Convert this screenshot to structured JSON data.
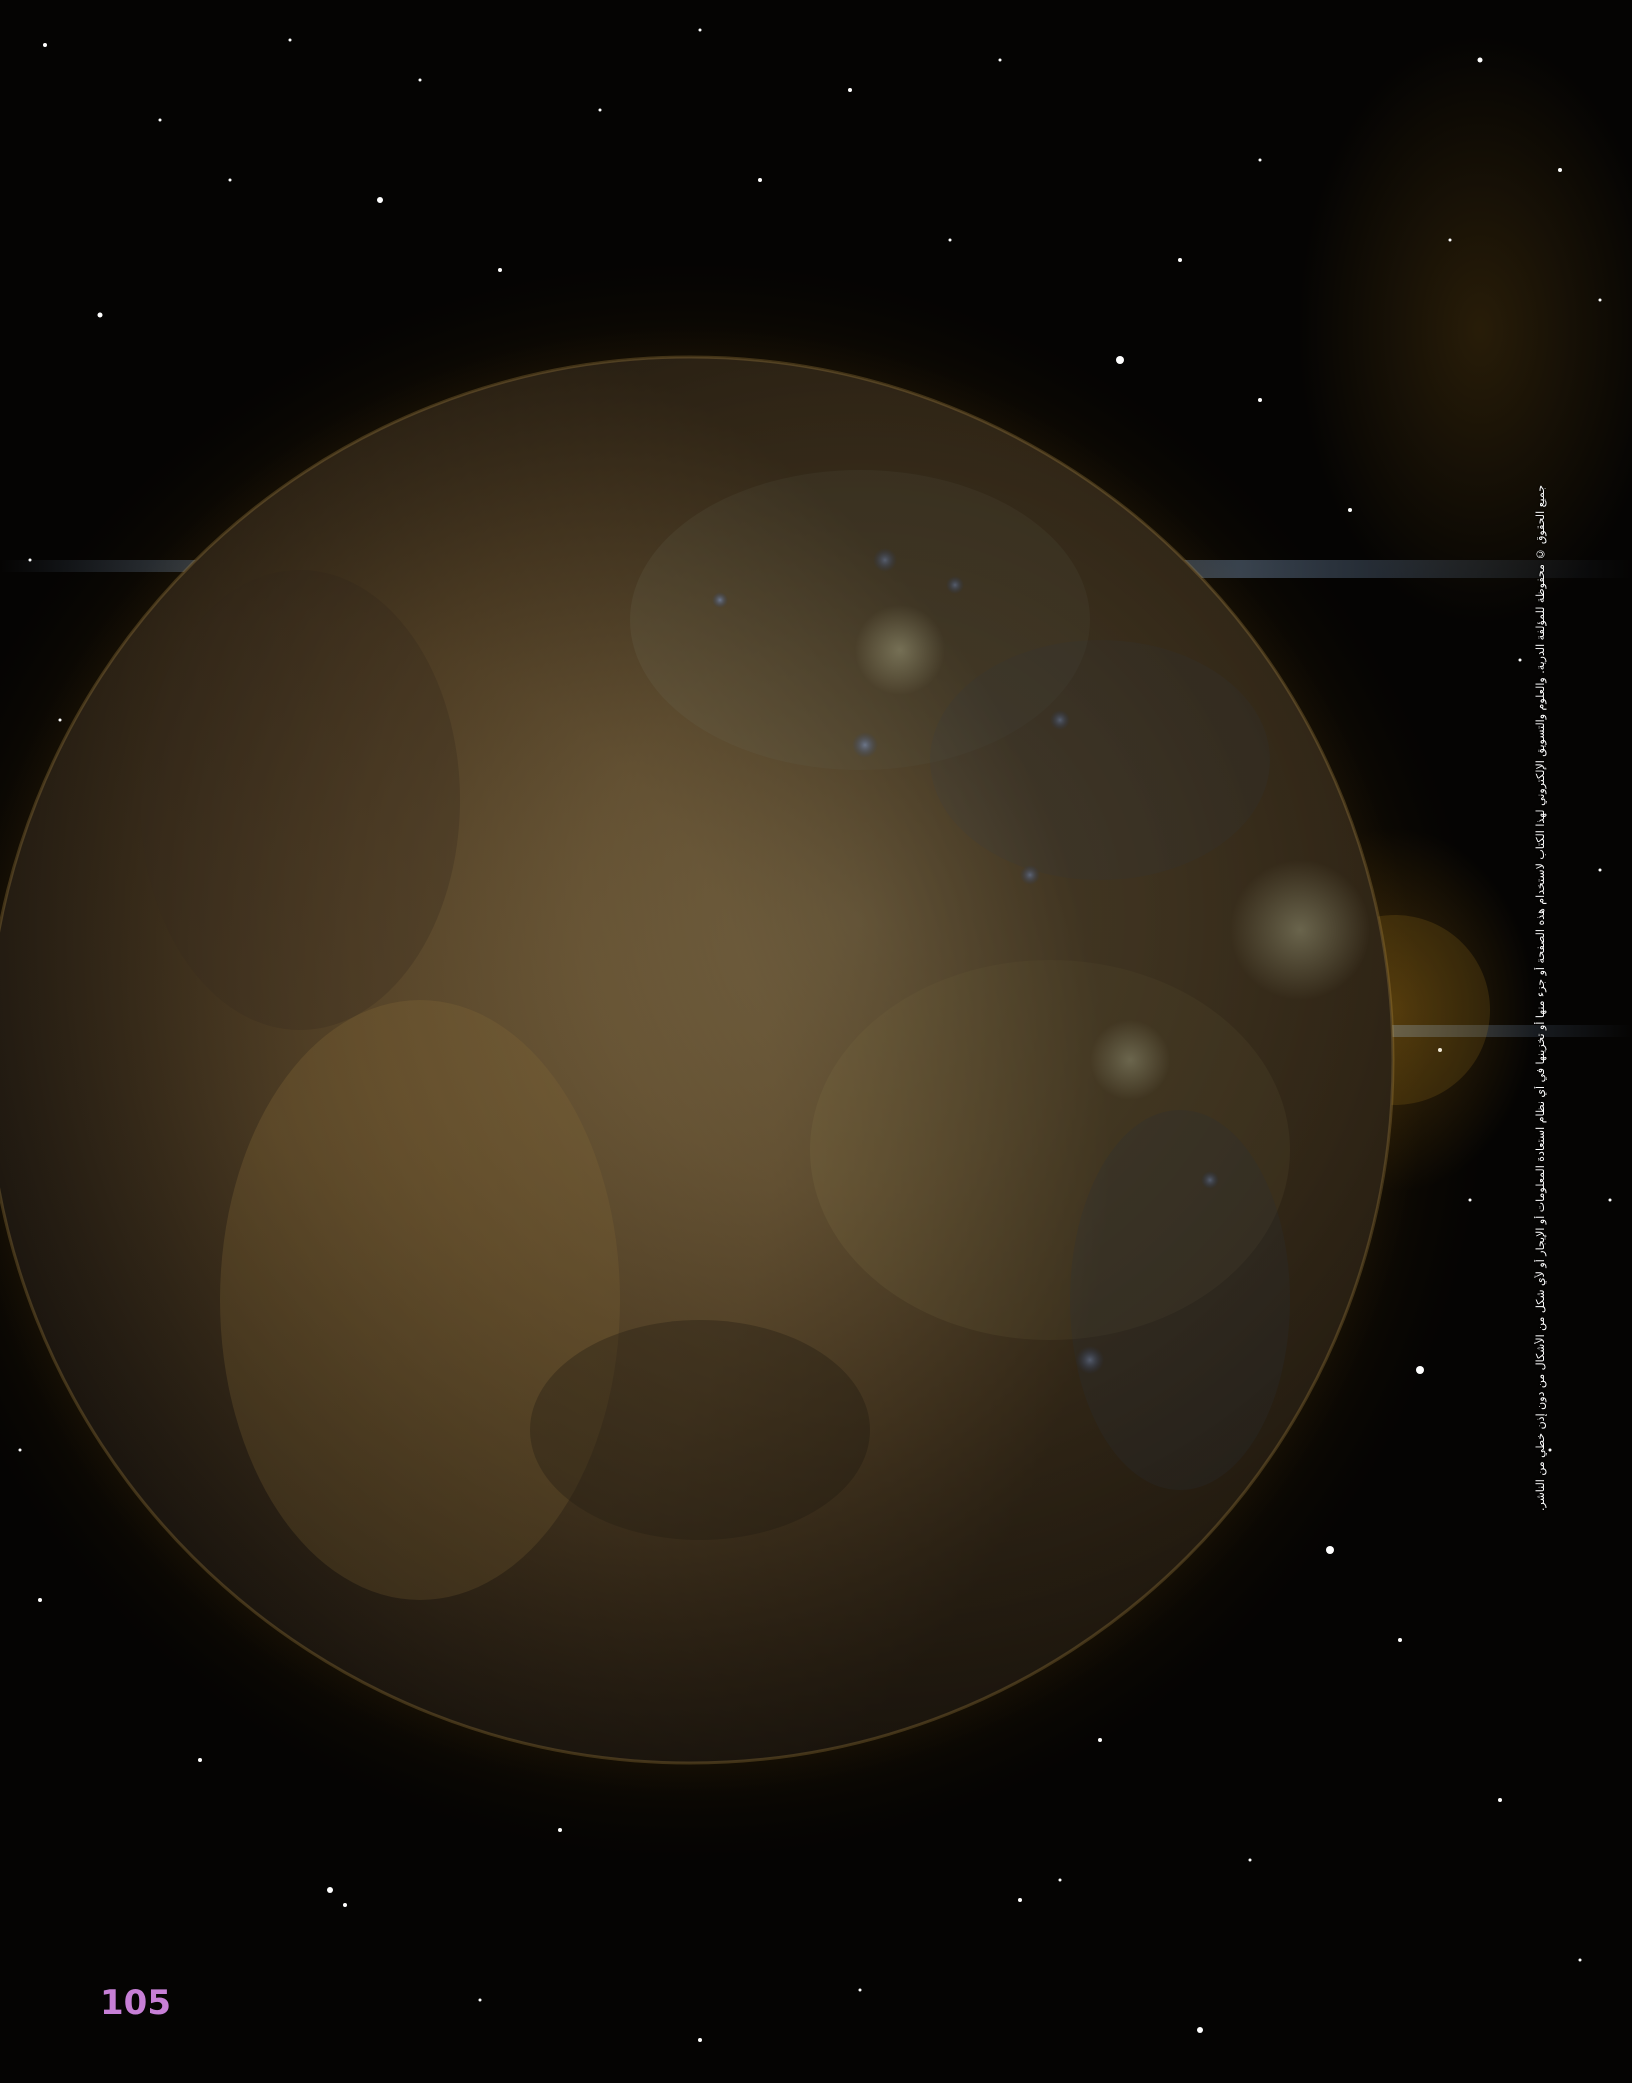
{
  "page": {
    "page_number": "105",
    "credit_text": "جميع الحقوق © محفوظة للمؤلفة الدرية. والعلوم والتسويق الإلكتروني لهذا الكتاب لاستخدام هذه الصفحة أو جزء منها أو تخزينها في أي نظام استعادة المعلومات أو الإيجار أو لأي شكل من الأشكال من دون إذن خطي من الناشر."
  },
  "colors": {
    "background": "#050403",
    "page_number": "#c77fd6",
    "credit_text": "#ffffff",
    "planet_glow": "#9a6a14"
  },
  "image": {
    "subject": "planet-mercury-icon"
  }
}
